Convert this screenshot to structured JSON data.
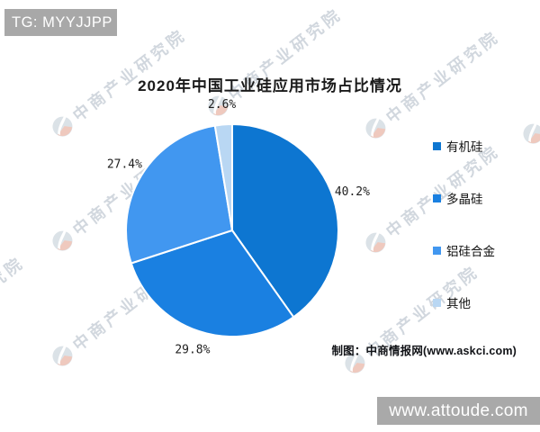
{
  "header": {
    "tag": "TG: MYYJJPP"
  },
  "watermark": {
    "text": "中商产业研究院"
  },
  "chart_data": {
    "type": "pie",
    "title": "2020年中国工业硅应用市场占比情况",
    "start_angle_deg": 0,
    "direction": "clockwise",
    "legend_position": "right",
    "label_format": "percent-outside",
    "slices": [
      {
        "name": "有机硅",
        "value": 40.2,
        "label": "40.2%",
        "color": "#0d76d1"
      },
      {
        "name": "多晶硅",
        "value": 29.8,
        "label": "29.8%",
        "color": "#1a80e1"
      },
      {
        "name": "铝硅合金",
        "value": 27.4,
        "label": "27.4%",
        "color": "#4197f0"
      },
      {
        "name": "其他",
        "value": 2.6,
        "label": "2.6%",
        "color": "#b9d7f3"
      }
    ]
  },
  "attribution": {
    "text": "制图：中商情报网(www.askci.com)"
  },
  "footer": {
    "site": "www.attoude.com"
  }
}
